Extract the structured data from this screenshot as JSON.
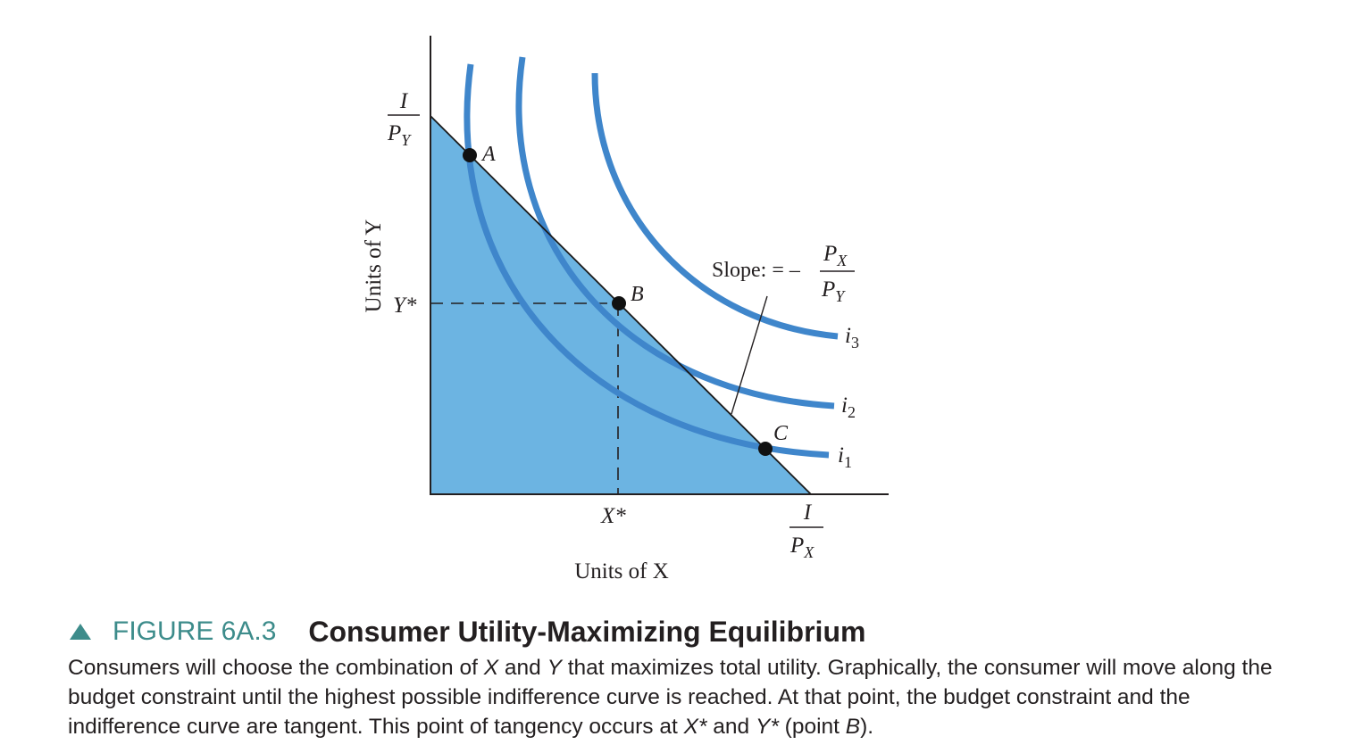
{
  "diagram": {
    "y_axis_label": "Units of Y",
    "x_axis_label": "Units of X",
    "y_intercept_label": {
      "numerator": "I",
      "denominator": "P",
      "denominator_sub": "Y"
    },
    "x_intercept_label": {
      "numerator": "I",
      "denominator": "P",
      "denominator_sub": "X"
    },
    "y_star_label": "Y*",
    "x_star_label": "X*",
    "points": {
      "a": "A",
      "b": "B",
      "c": "C"
    },
    "curves": {
      "i1": {
        "base": "i",
        "sub": "1"
      },
      "i2": {
        "base": "i",
        "sub": "2"
      },
      "i3": {
        "base": "i",
        "sub": "3"
      }
    },
    "slope_label": {
      "prefix": "Slope: = –",
      "numerator": "P",
      "numerator_sub": "X",
      "denominator": "P",
      "denominator_sub": "Y"
    },
    "colors": {
      "feasible_area": "#6cb4e2",
      "indifference_curve": "#3f86cb",
      "budget_line": "#1a1a1a",
      "axes": "#231f20"
    }
  },
  "caption": {
    "figure_number": "FIGURE 6A.3",
    "title": "Consumer Utility-Maximizing Equilibrium",
    "body_1": "Consumers will choose the combination of ",
    "body_x": "X",
    "body_2": " and ",
    "body_y": "Y",
    "body_3": " that maximizes total utility. Graphically, the consumer will move along the budget constraint until the highest possible indifference curve is reached. At that point, the budget constraint and the indifference curve are tangent. This point of tangency occurs at ",
    "body_xs": "X*",
    "body_4": " and ",
    "body_ys": "Y*",
    "body_5": " (point ",
    "body_b": "B",
    "body_6": ")."
  }
}
